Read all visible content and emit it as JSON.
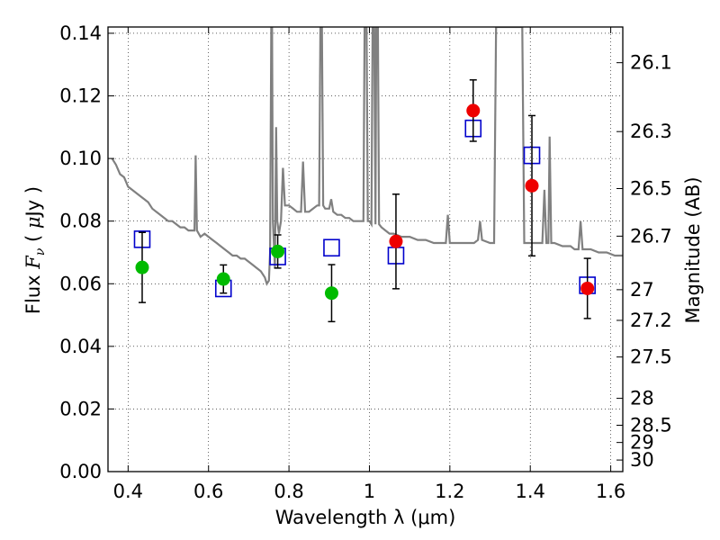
{
  "chart_data": {
    "type": "scatter",
    "title": "",
    "xlabel": "Wavelength  λ (μm)",
    "ylabel": "Flux  F_ν  ( μJy )",
    "ylabel_right": "Magnitude (AB)",
    "xlim": [
      0.35,
      1.63
    ],
    "ylim": [
      0.0,
      0.142
    ],
    "grid": true,
    "x_ticks": [
      0.4,
      0.6,
      0.8,
      1.0,
      1.2,
      1.4,
      1.6
    ],
    "x_tick_labels": [
      "0.4",
      "0.6",
      "0.8",
      "1",
      "1.2",
      "1.4",
      "1.6"
    ],
    "y_ticks": [
      0.0,
      0.02,
      0.04,
      0.06,
      0.08,
      0.1,
      0.12,
      0.14
    ],
    "y_tick_labels": [
      "0.00",
      "0.02",
      "0.04",
      "0.06",
      "0.08",
      "0.10",
      "0.12",
      "0.14"
    ],
    "right_ticks": [
      {
        "flux": 0.1306,
        "label": "26.1"
      },
      {
        "flux": 0.1086,
        "label": "26.3"
      },
      {
        "flux": 0.0904,
        "label": "26.5"
      },
      {
        "flux": 0.0752,
        "label": "26.7"
      },
      {
        "flux": 0.0581,
        "label": "27"
      },
      {
        "flux": 0.0483,
        "label": "27.2"
      },
      {
        "flux": 0.0366,
        "label": "27.5"
      },
      {
        "flux": 0.0234,
        "label": "28"
      },
      {
        "flux": 0.0148,
        "label": "28.5"
      },
      {
        "flux": 0.0093,
        "label": "29"
      },
      {
        "flux": 0.0037,
        "label": "30"
      }
    ],
    "series": [
      {
        "kind": "model-spectrum",
        "color": "#808080",
        "points": [
          [
            0.36,
            0.1
          ],
          [
            0.37,
            0.098
          ],
          [
            0.38,
            0.095
          ],
          [
            0.39,
            0.094
          ],
          [
            0.4,
            0.091
          ],
          [
            0.41,
            0.09
          ],
          [
            0.42,
            0.089
          ],
          [
            0.43,
            0.088
          ],
          [
            0.44,
            0.087
          ],
          [
            0.45,
            0.086
          ],
          [
            0.46,
            0.084
          ],
          [
            0.47,
            0.083
          ],
          [
            0.48,
            0.082
          ],
          [
            0.49,
            0.081
          ],
          [
            0.5,
            0.08
          ],
          [
            0.51,
            0.08
          ],
          [
            0.52,
            0.079
          ],
          [
            0.53,
            0.078
          ],
          [
            0.54,
            0.078
          ],
          [
            0.55,
            0.077
          ],
          [
            0.56,
            0.077
          ],
          [
            0.565,
            0.077
          ],
          [
            0.568,
            0.101
          ],
          [
            0.571,
            0.077
          ],
          [
            0.58,
            0.075
          ],
          [
            0.59,
            0.076
          ],
          [
            0.6,
            0.075
          ],
          [
            0.61,
            0.074
          ],
          [
            0.62,
            0.073
          ],
          [
            0.63,
            0.072
          ],
          [
            0.64,
            0.071
          ],
          [
            0.65,
            0.07
          ],
          [
            0.66,
            0.069
          ],
          [
            0.67,
            0.069
          ],
          [
            0.68,
            0.068
          ],
          [
            0.69,
            0.068
          ],
          [
            0.7,
            0.067
          ],
          [
            0.71,
            0.066
          ],
          [
            0.72,
            0.065
          ],
          [
            0.73,
            0.064
          ],
          [
            0.74,
            0.062
          ],
          [
            0.745,
            0.06
          ],
          [
            0.75,
            0.061
          ],
          [
            0.753,
            0.07
          ],
          [
            0.756,
            0.142
          ],
          [
            0.758,
            0.142
          ],
          [
            0.76,
            0.08
          ],
          [
            0.765,
            0.065
          ],
          [
            0.768,
            0.11
          ],
          [
            0.771,
            0.08
          ],
          [
            0.775,
            0.076
          ],
          [
            0.78,
            0.08
          ],
          [
            0.785,
            0.097
          ],
          [
            0.79,
            0.085
          ],
          [
            0.8,
            0.085
          ],
          [
            0.81,
            0.084
          ],
          [
            0.82,
            0.083
          ],
          [
            0.83,
            0.083
          ],
          [
            0.835,
            0.099
          ],
          [
            0.84,
            0.083
          ],
          [
            0.85,
            0.083
          ],
          [
            0.86,
            0.084
          ],
          [
            0.87,
            0.085
          ],
          [
            0.875,
            0.085
          ],
          [
            0.878,
            0.142
          ],
          [
            0.882,
            0.142
          ],
          [
            0.885,
            0.085
          ],
          [
            0.89,
            0.084
          ],
          [
            0.9,
            0.084
          ],
          [
            0.905,
            0.087
          ],
          [
            0.91,
            0.083
          ],
          [
            0.92,
            0.082
          ],
          [
            0.93,
            0.082
          ],
          [
            0.94,
            0.081
          ],
          [
            0.95,
            0.081
          ],
          [
            0.96,
            0.08
          ],
          [
            0.97,
            0.08
          ],
          [
            0.98,
            0.08
          ],
          [
            0.985,
            0.08
          ],
          [
            0.988,
            0.142
          ],
          [
            0.993,
            0.142
          ],
          [
            0.996,
            0.08
          ],
          [
            1.0,
            0.08
          ],
          [
            1.005,
            0.079
          ],
          [
            1.008,
            0.142
          ],
          [
            1.012,
            0.142
          ],
          [
            1.015,
            0.079
          ],
          [
            1.017,
            0.142
          ],
          [
            1.021,
            0.142
          ],
          [
            1.024,
            0.079
          ],
          [
            1.03,
            0.078
          ],
          [
            1.04,
            0.077
          ],
          [
            1.05,
            0.076
          ],
          [
            1.06,
            0.076
          ],
          [
            1.08,
            0.075
          ],
          [
            1.1,
            0.075
          ],
          [
            1.12,
            0.074
          ],
          [
            1.14,
            0.074
          ],
          [
            1.16,
            0.073
          ],
          [
            1.18,
            0.073
          ],
          [
            1.19,
            0.073
          ],
          [
            1.195,
            0.082
          ],
          [
            1.2,
            0.073
          ],
          [
            1.22,
            0.073
          ],
          [
            1.24,
            0.073
          ],
          [
            1.26,
            0.073
          ],
          [
            1.27,
            0.074
          ],
          [
            1.275,
            0.08
          ],
          [
            1.28,
            0.074
          ],
          [
            1.3,
            0.073
          ],
          [
            1.31,
            0.073
          ],
          [
            1.315,
            0.142
          ],
          [
            1.38,
            0.142
          ],
          [
            1.385,
            0.073
          ],
          [
            1.4,
            0.073
          ],
          [
            1.42,
            0.073
          ],
          [
            1.43,
            0.073
          ],
          [
            1.435,
            0.09
          ],
          [
            1.44,
            0.073
          ],
          [
            1.445,
            0.073
          ],
          [
            1.448,
            0.107
          ],
          [
            1.452,
            0.073
          ],
          [
            1.46,
            0.073
          ],
          [
            1.48,
            0.072
          ],
          [
            1.5,
            0.072
          ],
          [
            1.51,
            0.071
          ],
          [
            1.52,
            0.071
          ],
          [
            1.525,
            0.08
          ],
          [
            1.53,
            0.071
          ],
          [
            1.55,
            0.071
          ],
          [
            1.57,
            0.07
          ],
          [
            1.59,
            0.07
          ],
          [
            1.61,
            0.069
          ],
          [
            1.63,
            0.069
          ]
        ]
      },
      {
        "kind": "model-photometry",
        "marker": "open-square",
        "color": "#0000cc",
        "points": [
          {
            "x": 0.435,
            "y": 0.0742
          },
          {
            "x": 0.637,
            "y": 0.0585
          },
          {
            "x": 0.772,
            "y": 0.0687
          },
          {
            "x": 0.906,
            "y": 0.0715
          },
          {
            "x": 1.066,
            "y": 0.069
          },
          {
            "x": 1.258,
            "y": 0.1096
          },
          {
            "x": 1.404,
            "y": 0.101
          },
          {
            "x": 1.542,
            "y": 0.0595
          }
        ]
      },
      {
        "kind": "observed-hst-acs",
        "marker": "filled-circle",
        "color": "#00bb00",
        "points": [
          {
            "x": 0.435,
            "y": 0.0652,
            "err": 0.0112
          },
          {
            "x": 0.637,
            "y": 0.0615,
            "err": 0.0045
          },
          {
            "x": 0.772,
            "y": 0.0703,
            "err": 0.0053
          },
          {
            "x": 0.906,
            "y": 0.057,
            "err": 0.0091
          }
        ]
      },
      {
        "kind": "observed-hst-wfc3",
        "marker": "filled-circle",
        "color": "#ee0000",
        "points": [
          {
            "x": 1.066,
            "y": 0.0735,
            "err": 0.0151
          },
          {
            "x": 1.258,
            "y": 0.1153,
            "err": 0.0098
          },
          {
            "x": 1.404,
            "y": 0.0913,
            "err": 0.0224
          },
          {
            "x": 1.542,
            "y": 0.0585,
            "err": 0.0096
          }
        ]
      }
    ]
  }
}
